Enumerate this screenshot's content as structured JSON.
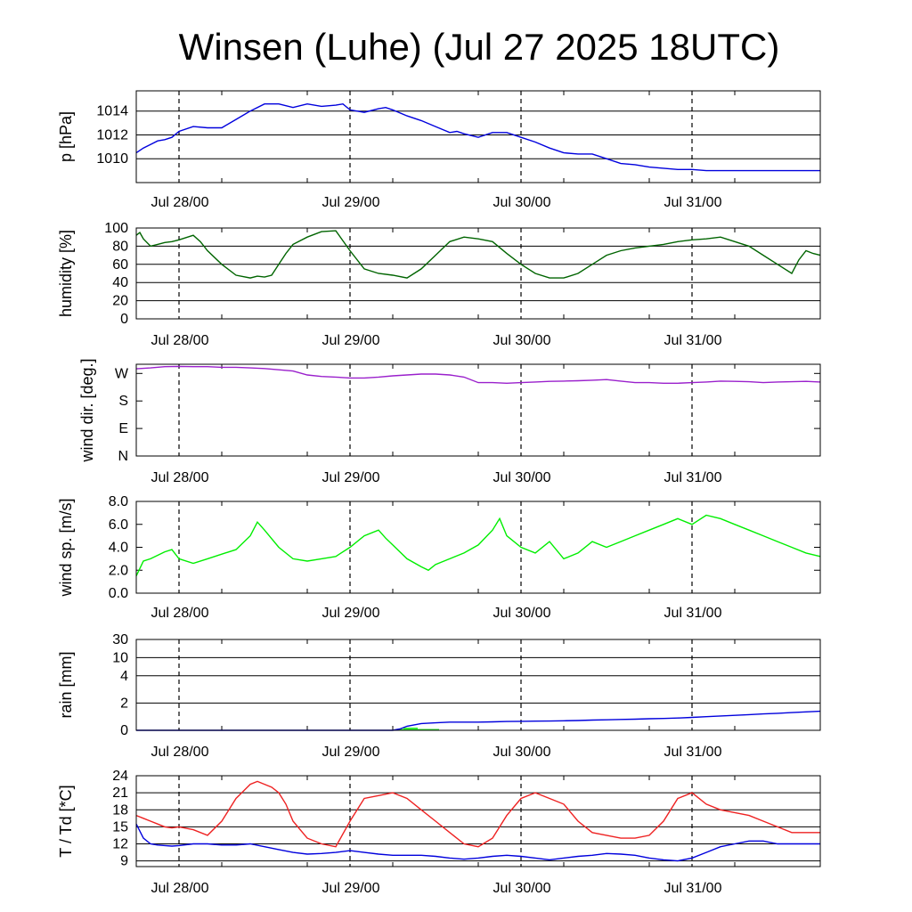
{
  "title": "Winsen (Luhe) (Jul 27 2025 18UTC)",
  "chart_data": [
    {
      "id": "pressure",
      "type": "line",
      "ylabel": "p [hPa]",
      "ylim": [
        1008,
        1015.7
      ],
      "yticks": [
        1010,
        1012,
        1014
      ],
      "ytick_labels": [
        "1010",
        "1012",
        "1014"
      ],
      "grid": true,
      "x_unit": "hours since Jul 27 18UTC",
      "xlim": [
        0,
        96
      ],
      "xtick_labels": [
        "Jul 28/00",
        "Jul 29/00",
        "Jul 30/00",
        "Jul 31/00"
      ],
      "series": [
        {
          "color": "#0000dd",
          "x": [
            0,
            1,
            2,
            3,
            4,
            5,
            6,
            8,
            10,
            12,
            14,
            16,
            18,
            20,
            22,
            24,
            26,
            28,
            29,
            30,
            32,
            34,
            35,
            36,
            38,
            40,
            42,
            44,
            45,
            46,
            48,
            50,
            52,
            54,
            56,
            58,
            60,
            62,
            64,
            66,
            68,
            70,
            72,
            74,
            76,
            78,
            80,
            82,
            84,
            86,
            88,
            89,
            90,
            92,
            94,
            96
          ],
          "y": [
            1010.5,
            1010.9,
            1011.2,
            1011.5,
            1011.6,
            1011.8,
            1012.3,
            1012.7,
            1012.6,
            1012.6,
            1013.3,
            1014.0,
            1014.6,
            1014.6,
            1014.3,
            1014.6,
            1014.4,
            1014.5,
            1014.6,
            1014.1,
            1013.9,
            1014.2,
            1014.3,
            1014.1,
            1013.6,
            1013.2,
            1012.7,
            1012.2,
            1012.3,
            1012.1,
            1011.8,
            1012.2,
            1012.2,
            1011.8,
            1011.4,
            1010.9,
            1010.5,
            1010.4,
            1010.4,
            1010.0,
            1009.6,
            1009.5,
            1009.3,
            1009.2,
            1009.1,
            1009.1,
            1009.0,
            1009.0,
            1009.0,
            1009.0,
            1009.0,
            1009.0,
            1009.0,
            1009.0,
            1009.0,
            1009.0
          ]
        }
      ]
    },
    {
      "id": "humidity",
      "type": "line",
      "ylabel": "humidity [%]",
      "ylim": [
        0,
        100
      ],
      "yticks": [
        0,
        20,
        40,
        60,
        80,
        100
      ],
      "ytick_labels": [
        "0",
        "20",
        "40",
        "60",
        "80",
        "100"
      ],
      "grid": true,
      "xlim": [
        0,
        96
      ],
      "xtick_labels": [
        "Jul 28/00",
        "Jul 29/00",
        "Jul 30/00",
        "Jul 31/00"
      ],
      "series": [
        {
          "color": "#006400",
          "x": [
            0,
            0.5,
            1,
            2,
            3,
            4,
            5,
            6,
            8,
            9,
            10,
            12,
            14,
            16,
            17,
            18,
            19,
            20,
            21,
            22,
            24,
            26,
            28,
            30,
            32,
            34,
            36,
            38,
            40,
            42,
            44,
            46,
            48,
            50,
            52,
            54,
            56,
            58,
            60,
            62,
            64,
            66,
            68,
            70,
            72,
            74,
            76,
            78,
            80,
            82,
            84,
            86,
            88,
            90,
            92,
            93,
            94,
            95,
            96
          ],
          "y": [
            92,
            95,
            88,
            80,
            82,
            84,
            85,
            87,
            92,
            85,
            75,
            60,
            48,
            45,
            47,
            46,
            48,
            60,
            72,
            82,
            90,
            96,
            97,
            75,
            55,
            50,
            48,
            45,
            55,
            70,
            85,
            90,
            88,
            85,
            72,
            60,
            50,
            45,
            45,
            50,
            60,
            70,
            75,
            78,
            80,
            82,
            85,
            87,
            88,
            90,
            85,
            80,
            70,
            60,
            50,
            65,
            75,
            72,
            70
          ]
        }
      ]
    },
    {
      "id": "wind_direction",
      "type": "line",
      "ylabel": "wind dir. [deg.]",
      "ylim": [
        0,
        300
      ],
      "yticks": [
        0,
        90,
        180,
        270
      ],
      "ytick_labels": [
        "N",
        "E",
        "S",
        "W"
      ],
      "grid": false,
      "xlim": [
        0,
        96
      ],
      "xtick_labels": [
        "Jul 28/00",
        "Jul 29/00",
        "Jul 30/00",
        "Jul 31/00"
      ],
      "series": [
        {
          "color": "#9a20cc",
          "x": [
            0,
            2,
            4,
            6,
            8,
            10,
            12,
            14,
            16,
            18,
            20,
            22,
            24,
            26,
            28,
            30,
            32,
            34,
            36,
            38,
            40,
            42,
            44,
            46,
            48,
            50,
            52,
            54,
            56,
            58,
            60,
            62,
            64,
            66,
            68,
            70,
            72,
            74,
            76,
            78,
            80,
            82,
            84,
            86,
            88,
            90,
            92,
            94,
            96
          ],
          "y": [
            285,
            288,
            292,
            293,
            292,
            292,
            290,
            290,
            288,
            286,
            282,
            278,
            265,
            260,
            258,
            255,
            255,
            258,
            262,
            265,
            268,
            268,
            265,
            258,
            240,
            240,
            238,
            240,
            242,
            244,
            245,
            246,
            248,
            250,
            245,
            240,
            240,
            238,
            238,
            240,
            242,
            245,
            244,
            243,
            240,
            242,
            243,
            244,
            242
          ]
        }
      ]
    },
    {
      "id": "wind_speed",
      "type": "line",
      "ylabel": "wind sp. [m/s]",
      "ylim": [
        0,
        8
      ],
      "yticks": [
        0,
        2,
        4,
        6,
        8
      ],
      "ytick_labels": [
        "0.0",
        "2.0",
        "4.0",
        "6.0",
        "8.0"
      ],
      "grid": false,
      "xlim": [
        0,
        96
      ],
      "xtick_labels": [
        "Jul 28/00",
        "Jul 29/00",
        "Jul 30/00",
        "Jul 31/00"
      ],
      "series": [
        {
          "color": "#00ee00",
          "x": [
            0,
            1,
            2,
            3,
            4,
            5,
            6,
            8,
            10,
            12,
            14,
            16,
            17,
            18,
            20,
            22,
            24,
            26,
            28,
            30,
            32,
            34,
            35,
            36,
            38,
            40,
            41,
            42,
            44,
            46,
            48,
            50,
            51,
            52,
            54,
            56,
            58,
            60,
            62,
            64,
            66,
            68,
            70,
            72,
            74,
            76,
            78,
            80,
            82,
            84,
            86,
            88,
            90,
            92,
            94,
            96
          ],
          "y": [
            1.5,
            2.8,
            3.0,
            3.3,
            3.6,
            3.8,
            3.0,
            2.6,
            3.0,
            3.4,
            3.8,
            5.0,
            6.2,
            5.5,
            4.0,
            3.0,
            2.8,
            3.0,
            3.2,
            4.0,
            5.0,
            5.5,
            4.8,
            4.2,
            3.0,
            2.3,
            2.0,
            2.5,
            3.0,
            3.5,
            4.2,
            5.5,
            6.5,
            5.0,
            4.0,
            3.5,
            4.5,
            3.0,
            3.5,
            4.5,
            4.0,
            4.5,
            5.0,
            5.5,
            6.0,
            6.5,
            6.0,
            6.8,
            6.5,
            6.0,
            5.5,
            5.0,
            4.5,
            4.0,
            3.5,
            3.2
          ]
        }
      ]
    },
    {
      "id": "rain",
      "type": "bar",
      "ylabel": "rain [mm]",
      "yticks_values": [
        0,
        2,
        4,
        10,
        30
      ],
      "ytick_labels": [
        "0",
        "2",
        "4",
        "10",
        "30"
      ],
      "grid": true,
      "xlim": [
        0,
        96
      ],
      "xtick_labels": [
        "Jul 28/00",
        "Jul 29/00",
        "Jul 30/00",
        "Jul 31/00"
      ],
      "bars": {
        "color": "#33ee33",
        "x": [
          37,
          38,
          39,
          40,
          41,
          42,
          43,
          44,
          45,
          46,
          47,
          48,
          49,
          50,
          51,
          52,
          53,
          54,
          55,
          56,
          57,
          58,
          59,
          60,
          61,
          62,
          63,
          64,
          65,
          66,
          67,
          68,
          69,
          70,
          71,
          72,
          73,
          74,
          75,
          76,
          77,
          78,
          79,
          80,
          81,
          82,
          83,
          84,
          85,
          86,
          87,
          88,
          89,
          90,
          91,
          92,
          93,
          94,
          95
        ],
        "y": [
          0.1,
          0.2,
          0.2,
          0.1,
          0.1,
          0.1,
          0.0,
          0.0,
          0.0,
          0.0,
          0.0,
          0.0,
          0.0,
          0.0,
          0.0,
          0.0,
          0.0,
          0.0,
          0.0,
          0.0,
          0.0,
          0.0,
          0.0,
          0.0,
          0.0,
          0.0,
          0.0,
          0.0,
          0.0,
          0.0,
          0.0,
          0.0,
          0.0,
          0.0,
          0.0,
          0.0,
          0.0,
          0.0,
          0.0,
          0.0,
          0.0,
          0.0,
          0.0,
          0.0,
          0.0,
          0.0,
          0.0,
          0.0,
          0.0,
          0.0,
          0.0,
          0.0,
          0.0,
          0.0,
          0.0,
          0.0,
          0.0,
          0.0,
          0.0
        ]
      },
      "series": [
        {
          "color": "#0000dd",
          "x": [
            0,
            36,
            37,
            38,
            40,
            42,
            44,
            46,
            48,
            50,
            52,
            54,
            56,
            58,
            60,
            62,
            64,
            66,
            68,
            70,
            72,
            74,
            76,
            78,
            80,
            82,
            84,
            86,
            88,
            90,
            92,
            94,
            96
          ],
          "y": [
            0,
            0,
            0.1,
            0.3,
            0.5,
            0.55,
            0.6,
            0.6,
            0.6,
            0.62,
            0.65,
            0.66,
            0.67,
            0.68,
            0.7,
            0.72,
            0.75,
            0.77,
            0.8,
            0.82,
            0.85,
            0.87,
            0.9,
            0.95,
            1.0,
            1.05,
            1.1,
            1.15,
            1.2,
            1.25,
            1.3,
            1.35,
            1.4
          ]
        }
      ]
    },
    {
      "id": "temperature",
      "type": "line",
      "ylabel": "T / Td [*C]",
      "ylim": [
        8,
        24
      ],
      "yticks": [
        9,
        12,
        15,
        18,
        21,
        24
      ],
      "ytick_labels": [
        "9",
        "12",
        "15",
        "18",
        "21",
        "24"
      ],
      "grid": true,
      "xlim": [
        0,
        96
      ],
      "xtick_labels": [
        "Jul 28/00",
        "Jul 29/00",
        "Jul 30/00",
        "Jul 31/00"
      ],
      "series": [
        {
          "color": "#ee2222",
          "x": [
            0,
            1,
            2,
            3,
            4,
            5,
            6,
            8,
            10,
            12,
            14,
            16,
            17,
            18,
            19,
            20,
            21,
            22,
            24,
            26,
            28,
            30,
            32,
            34,
            36,
            38,
            40,
            42,
            44,
            46,
            48,
            50,
            52,
            54,
            56,
            58,
            60,
            62,
            64,
            66,
            68,
            70,
            72,
            74,
            76,
            78,
            80,
            82,
            84,
            86,
            88,
            90,
            92,
            94,
            96
          ],
          "y": [
            17,
            16.5,
            16,
            15.5,
            15,
            14.8,
            15,
            14.5,
            13.5,
            16,
            20,
            22.5,
            23,
            22.5,
            22,
            21,
            19,
            16,
            13,
            12,
            11.5,
            16,
            20,
            20.5,
            21,
            20,
            18,
            16,
            14,
            12,
            11.5,
            13,
            17,
            20,
            21,
            20,
            19,
            16,
            14,
            13.5,
            13,
            13,
            13.5,
            16,
            20,
            21,
            19,
            18,
            17.5,
            17,
            16,
            15,
            14,
            14,
            14
          ]
        },
        {
          "color": "#0000dd",
          "x": [
            0,
            1,
            2,
            3,
            4,
            5,
            6,
            8,
            10,
            12,
            14,
            16,
            18,
            20,
            22,
            24,
            26,
            28,
            30,
            32,
            34,
            36,
            38,
            40,
            42,
            44,
            46,
            48,
            50,
            52,
            54,
            56,
            58,
            60,
            62,
            64,
            66,
            68,
            70,
            72,
            74,
            76,
            78,
            80,
            82,
            84,
            86,
            88,
            90,
            92,
            94,
            96
          ],
          "y": [
            15.5,
            13,
            12,
            11.8,
            11.7,
            11.6,
            11.7,
            12,
            12,
            11.8,
            11.8,
            12,
            11.5,
            11,
            10.5,
            10.2,
            10.3,
            10.5,
            10.8,
            10.5,
            10.2,
            10,
            10,
            10,
            9.8,
            9.5,
            9.3,
            9.5,
            9.8,
            10,
            9.8,
            9.5,
            9.2,
            9.5,
            9.8,
            10,
            10.3,
            10.2,
            10,
            9.5,
            9.2,
            9,
            9.5,
            10.5,
            11.5,
            12,
            12.5,
            12.5,
            12,
            12,
            12,
            12
          ]
        }
      ]
    }
  ]
}
